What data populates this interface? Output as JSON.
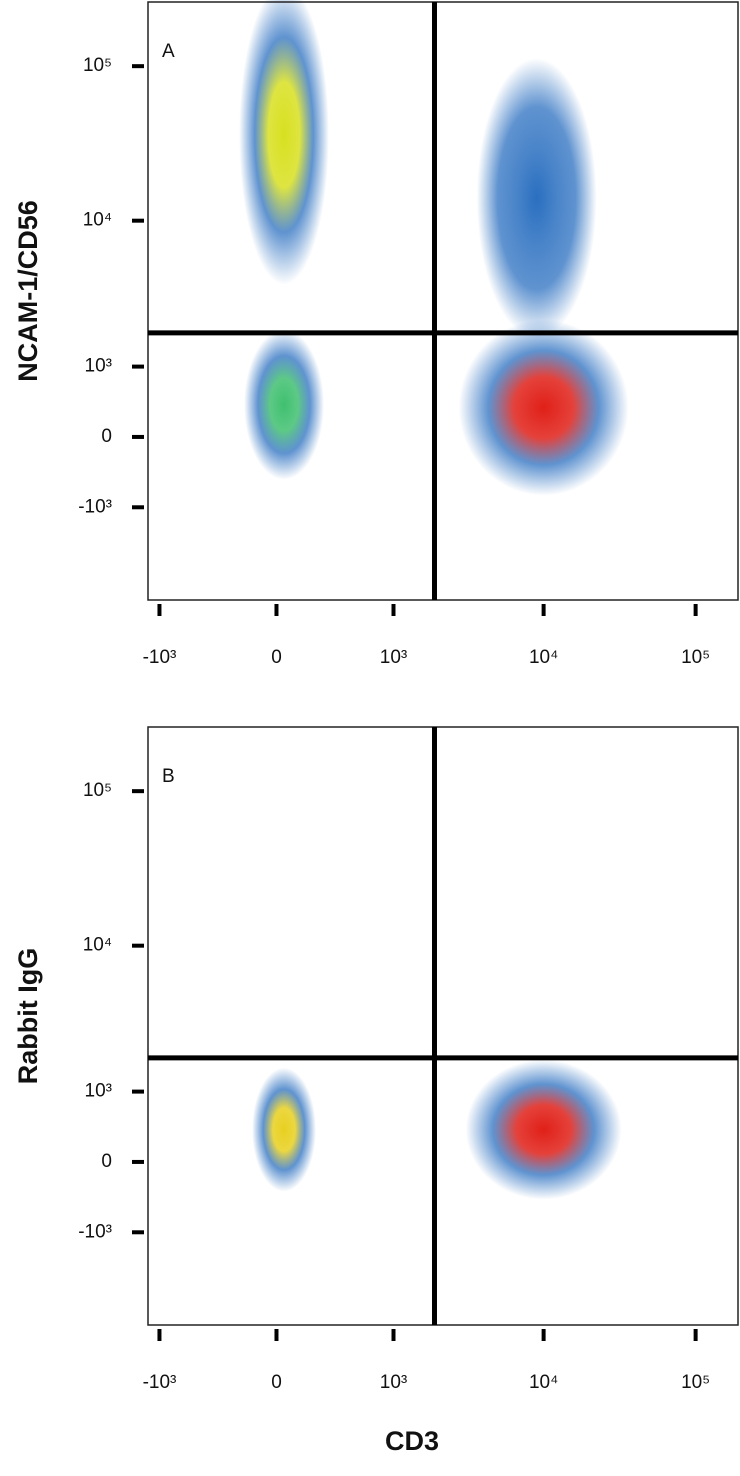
{
  "chart_data": [
    {
      "type": "scatter",
      "panel_label": "A",
      "ylabel": "NCAM-1/CD56",
      "scale": "biexponential",
      "xlim": [
        -1200,
        190000
      ],
      "ylim": [
        -4500,
        260000
      ],
      "xticks": [
        {
          "value": -1000,
          "label": "-10³"
        },
        0,
        {
          "value": 1000,
          "label": "10³"
        },
        {
          "value": 10000,
          "label": "10⁴"
        },
        {
          "value": 100000,
          "label": "10⁵"
        }
      ],
      "yticks": [
        {
          "value": -1000,
          "label": "-10³"
        },
        0,
        {
          "value": 1000,
          "label": "10³"
        },
        {
          "value": 10000,
          "label": "10⁴"
        },
        {
          "value": 100000,
          "label": "10⁵"
        }
      ],
      "vlines": [
        1900
      ],
      "hlines": [
        1800
      ],
      "populations": [
        {
          "x": 40,
          "y": 36000,
          "color": "#d8e020"
        },
        {
          "x": 40,
          "y": 400,
          "color": "#40c070"
        },
        {
          "x": 10000,
          "y": 360,
          "color": "#e02018"
        },
        {
          "x": 9000,
          "y": 14000,
          "color": "#2a6fc0"
        }
      ]
    },
    {
      "type": "scatter",
      "panel_label": "B",
      "ylabel": "Rabbit IgG",
      "xlabel": "CD3",
      "scale": "biexponential",
      "xlim": [
        -1200,
        190000
      ],
      "ylim": [
        -4500,
        260000
      ],
      "xticks": [
        {
          "value": -1000,
          "label": "-10³"
        },
        0,
        {
          "value": 1000,
          "label": "10³"
        },
        {
          "value": 10000,
          "label": "10⁴"
        },
        {
          "value": 100000,
          "label": "10⁵"
        }
      ],
      "yticks": [
        {
          "value": -1000,
          "label": "-10³"
        },
        0,
        {
          "value": 1000,
          "label": "10³"
        },
        {
          "value": 10000,
          "label": "10⁴"
        },
        {
          "value": 100000,
          "label": "10⁵"
        }
      ],
      "vlines": [
        1900
      ],
      "hlines": [
        1800
      ],
      "populations": [
        {
          "x": 40,
          "y": 400,
          "color": "#e8d020"
        },
        {
          "x": 10000,
          "y": 400,
          "color": "#e02018"
        }
      ]
    }
  ]
}
